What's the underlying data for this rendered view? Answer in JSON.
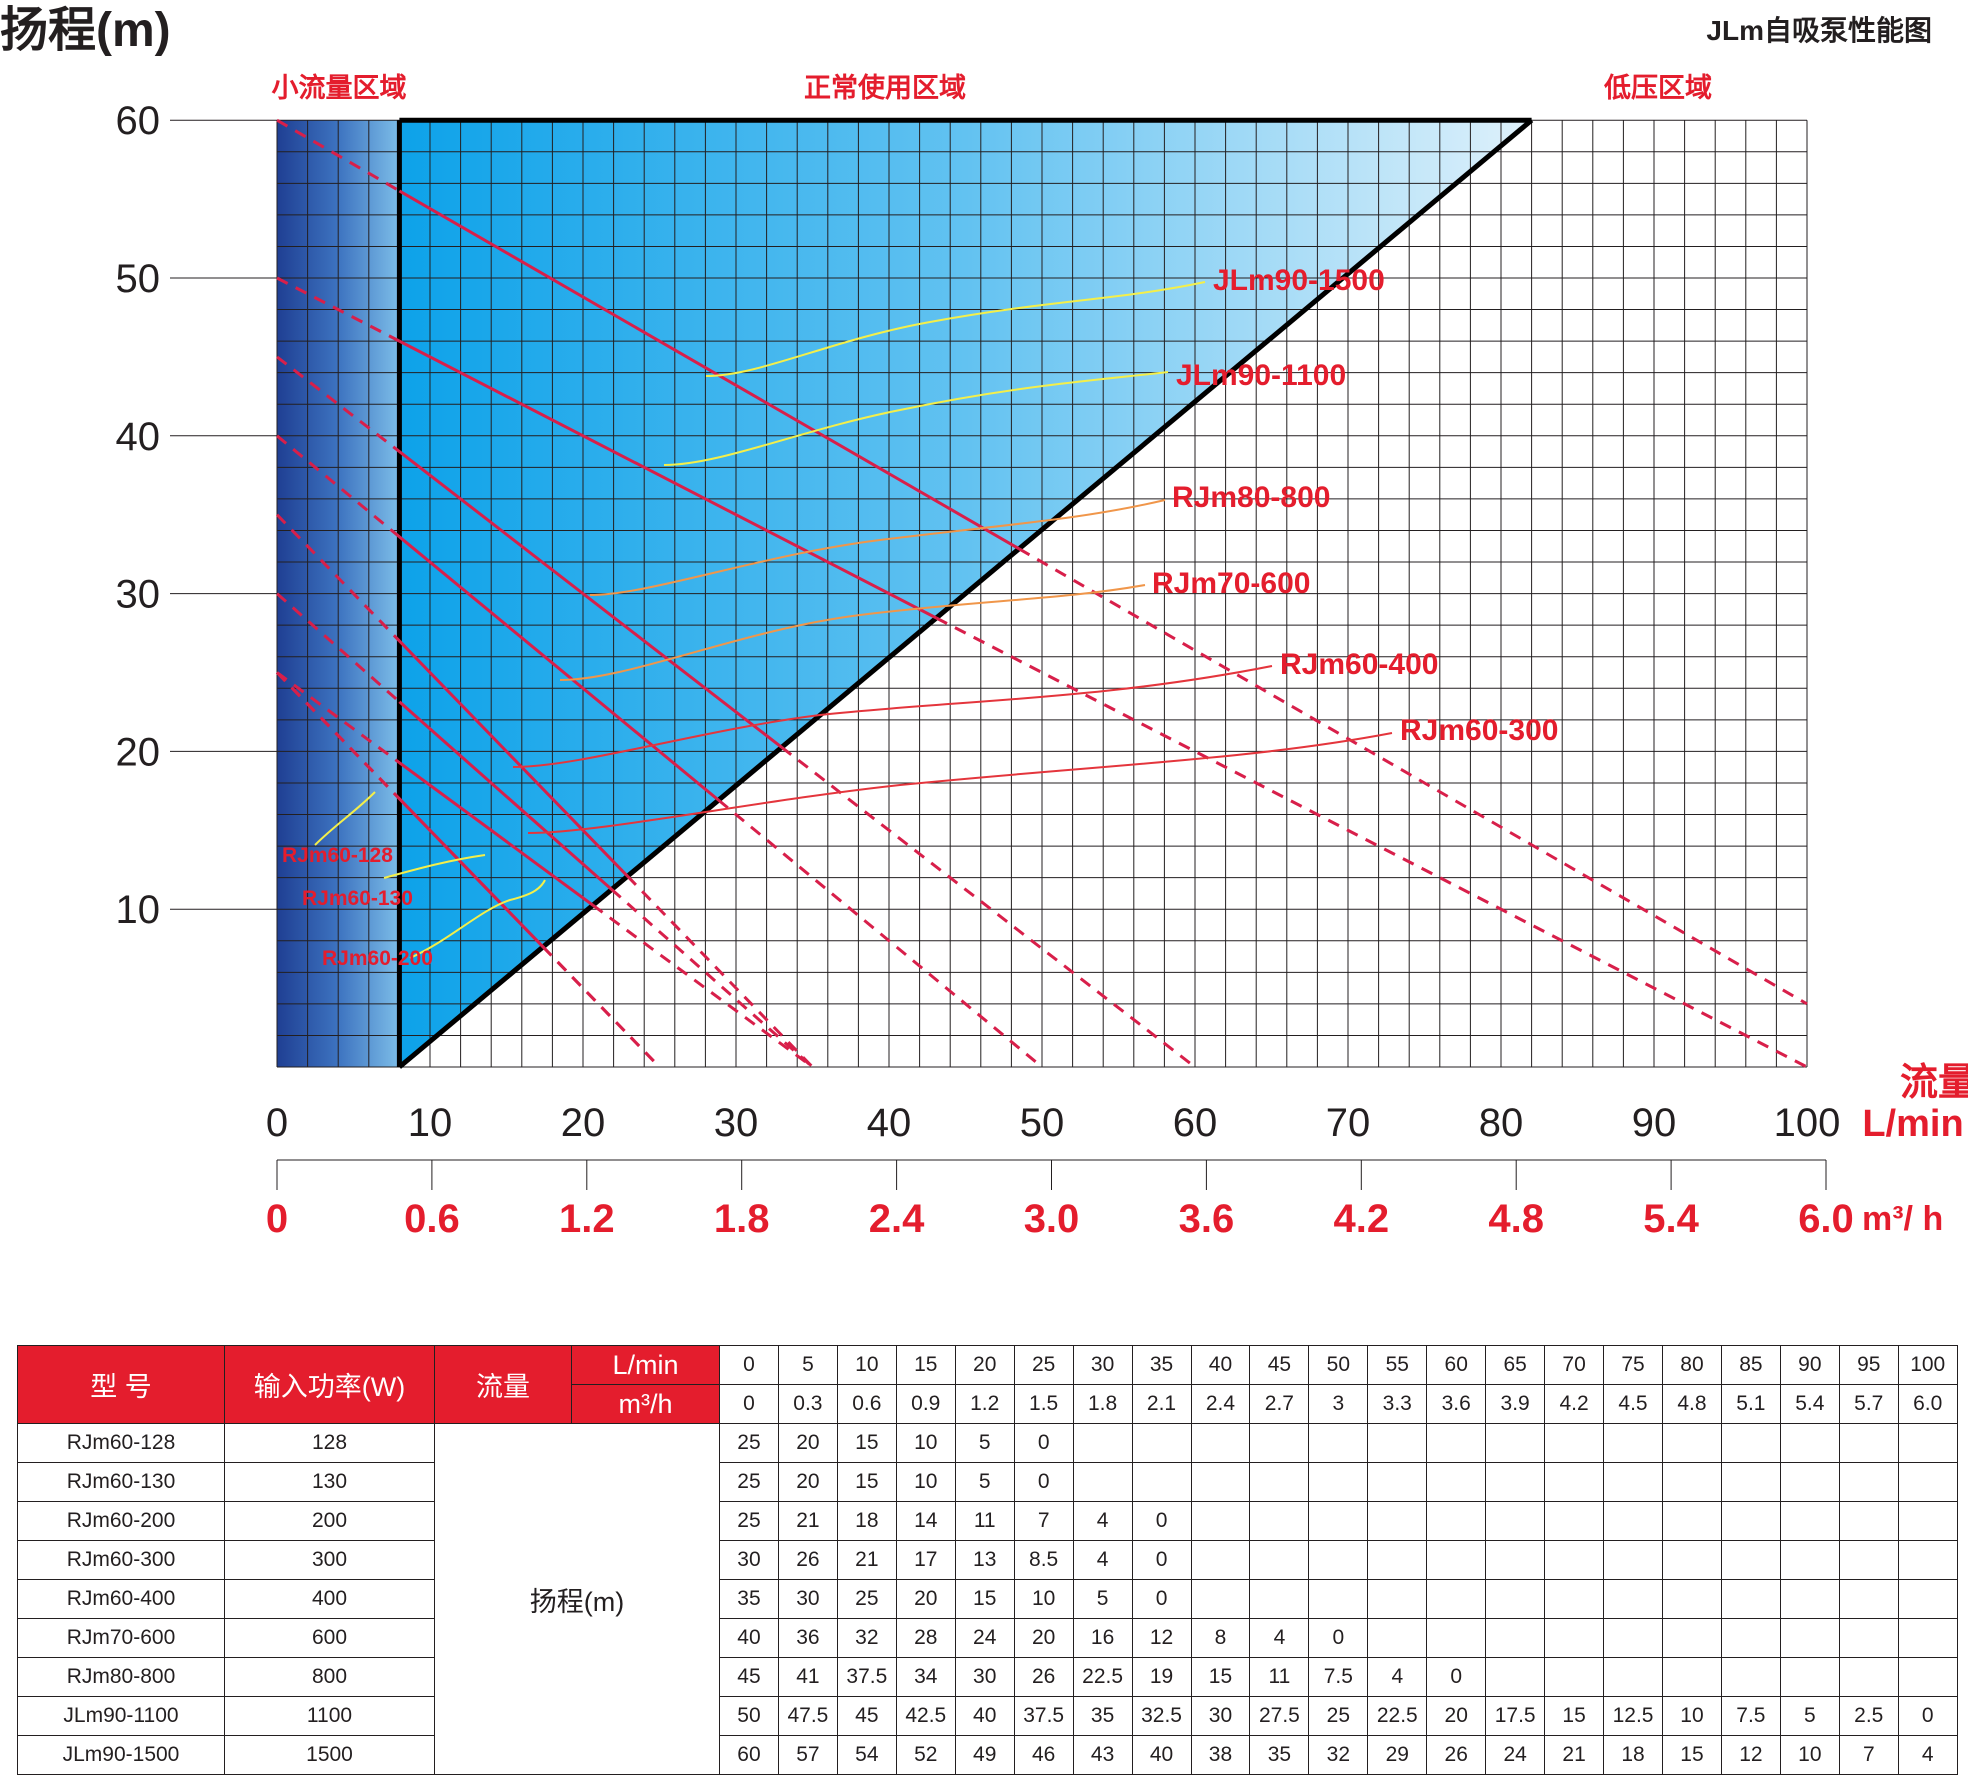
{
  "chart_data": {
    "type": "line",
    "title": "JLm自吸泵性能图",
    "ylabel": "扬程(m)",
    "xlabel": "流量 L/min",
    "xlabel_line1": "流量",
    "xlabel_line2": "L/min",
    "x2label": "m³/ h",
    "ylim": [
      0,
      60
    ],
    "xlim": [
      0,
      100
    ],
    "yticks": [
      "60",
      "50",
      "40",
      "30",
      "20",
      "10"
    ],
    "yticks_values": [
      60,
      50,
      40,
      30,
      20,
      10
    ],
    "xticks": [
      "0",
      "10",
      "20",
      "30",
      "40",
      "50",
      "60",
      "70",
      "80",
      "90",
      "100"
    ],
    "x2ticks": [
      "0",
      "0.6",
      "1.2",
      "1.8",
      "2.4",
      "3.0",
      "3.6",
      "4.2",
      "4.8",
      "5.4",
      "6.0"
    ],
    "zones": [
      "小流量区域",
      "正常使用区域",
      "低压区域"
    ],
    "grid": true,
    "series": [
      {
        "name": "RJm60-128",
        "x": [
          0,
          5,
          10,
          15,
          20,
          25
        ],
        "y": [
          25,
          20,
          15,
          10,
          5,
          0
        ]
      },
      {
        "name": "RJm60-130",
        "x": [
          0,
          5,
          10,
          15,
          20,
          25
        ],
        "y": [
          25,
          20,
          15,
          10,
          5,
          0
        ]
      },
      {
        "name": "RJm60-200",
        "x": [
          0,
          5,
          10,
          15,
          20,
          25,
          30,
          35
        ],
        "y": [
          25,
          21,
          18,
          14,
          11,
          7,
          4,
          0
        ]
      },
      {
        "name": "RJm60-300",
        "x": [
          0,
          5,
          10,
          15,
          20,
          25,
          30,
          35
        ],
        "y": [
          30,
          26,
          21,
          17,
          13,
          8.5,
          4,
          0
        ]
      },
      {
        "name": "RJm60-400",
        "x": [
          0,
          5,
          10,
          15,
          20,
          25,
          30,
          35
        ],
        "y": [
          35,
          30,
          25,
          20,
          15,
          10,
          5,
          0
        ]
      },
      {
        "name": "RJm70-600",
        "x": [
          0,
          5,
          10,
          15,
          20,
          25,
          30,
          35,
          40,
          45,
          50
        ],
        "y": [
          40,
          36,
          32,
          28,
          24,
          20,
          16,
          12,
          8,
          4,
          0
        ]
      },
      {
        "name": "RJm80-800",
        "x": [
          0,
          5,
          10,
          15,
          20,
          25,
          30,
          35,
          40,
          45,
          50,
          55,
          60
        ],
        "y": [
          45,
          41,
          37.5,
          34,
          30,
          26,
          22.5,
          19,
          15,
          11,
          7.5,
          4,
          0
        ]
      },
      {
        "name": "JLm90-1100",
        "x": [
          0,
          5,
          10,
          15,
          20,
          25,
          30,
          35,
          40,
          45,
          50,
          55,
          60,
          65,
          70,
          75,
          80,
          85,
          90,
          95,
          100
        ],
        "y": [
          50,
          47.5,
          45,
          42.5,
          40,
          37.5,
          35,
          32.5,
          30,
          27.5,
          25,
          22.5,
          20,
          17.5,
          15,
          12.5,
          10,
          7.5,
          5,
          2.5,
          0
        ]
      },
      {
        "name": "JLm90-1500",
        "x": [
          0,
          5,
          10,
          15,
          20,
          25,
          30,
          35,
          40,
          45,
          50,
          55,
          60,
          65,
          70,
          75,
          80,
          85,
          90,
          95,
          100
        ],
        "y": [
          60,
          57,
          54,
          52,
          49,
          46,
          43,
          40,
          38,
          35,
          32,
          29,
          26,
          24,
          21,
          18,
          15,
          12,
          10,
          7,
          4
        ]
      }
    ]
  },
  "table": {
    "col_model": "型 号",
    "col_power": "输入功率(W)",
    "col_flow": "流量",
    "unit_lmin": "L/min",
    "unit_m3h": "m³/h",
    "head_label": "扬程(m)",
    "flows_lmin": [
      "0",
      "5",
      "10",
      "15",
      "20",
      "25",
      "30",
      "35",
      "40",
      "45",
      "50",
      "55",
      "60",
      "65",
      "70",
      "75",
      "80",
      "85",
      "90",
      "95",
      "100"
    ],
    "flows_m3h": [
      "0",
      "0.3",
      "0.6",
      "0.9",
      "1.2",
      "1.5",
      "1.8",
      "2.1",
      "2.4",
      "2.7",
      "3",
      "3.3",
      "3.6",
      "3.9",
      "4.2",
      "4.5",
      "4.8",
      "5.1",
      "5.4",
      "5.7",
      "6.0"
    ],
    "rows": [
      {
        "model": "RJm60-128",
        "power": "128",
        "heads": [
          "25",
          "20",
          "15",
          "10",
          "5",
          "0"
        ]
      },
      {
        "model": "RJm60-130",
        "power": "130",
        "heads": [
          "25",
          "20",
          "15",
          "10",
          "5",
          "0"
        ]
      },
      {
        "model": "RJm60-200",
        "power": "200",
        "heads": [
          "25",
          "21",
          "18",
          "14",
          "11",
          "7",
          "4",
          "0"
        ]
      },
      {
        "model": "RJm60-300",
        "power": "300",
        "heads": [
          "30",
          "26",
          "21",
          "17",
          "13",
          "8.5",
          "4",
          "0"
        ]
      },
      {
        "model": "RJm60-400",
        "power": "400",
        "heads": [
          "35",
          "30",
          "25",
          "20",
          "15",
          "10",
          "5",
          "0"
        ]
      },
      {
        "model": "RJm70-600",
        "power": "600",
        "heads": [
          "40",
          "36",
          "32",
          "28",
          "24",
          "20",
          "16",
          "12",
          "8",
          "4",
          "0"
        ]
      },
      {
        "model": "RJm80-800",
        "power": "800",
        "heads": [
          "45",
          "41",
          "37.5",
          "34",
          "30",
          "26",
          "22.5",
          "19",
          "15",
          "11",
          "7.5",
          "4",
          "0"
        ]
      },
      {
        "model": "JLm90-1100",
        "power": "1100",
        "heads": [
          "50",
          "47.5",
          "45",
          "42.5",
          "40",
          "37.5",
          "35",
          "32.5",
          "30",
          "27.5",
          "25",
          "22.5",
          "20",
          "17.5",
          "15",
          "12.5",
          "10",
          "7.5",
          "5",
          "2.5",
          "0"
        ]
      },
      {
        "model": "JLm90-1500",
        "power": "1500",
        "heads": [
          "60",
          "57",
          "54",
          "52",
          "49",
          "46",
          "43",
          "40",
          "38",
          "35",
          "32",
          "29",
          "26",
          "24",
          "21",
          "18",
          "15",
          "12",
          "10",
          "7",
          "4"
        ]
      }
    ]
  },
  "colors": {
    "red": "#e41d2d",
    "curve": "#d81f4a",
    "dark_blue": "#1f3f93",
    "mid_blue": "#0da2e9",
    "light_blue": "#d8effb",
    "grid": "#231f20",
    "leader_yellow": "#f4ef4a",
    "leader_orange": "#f0964a",
    "leader_red": "#e4353c"
  }
}
